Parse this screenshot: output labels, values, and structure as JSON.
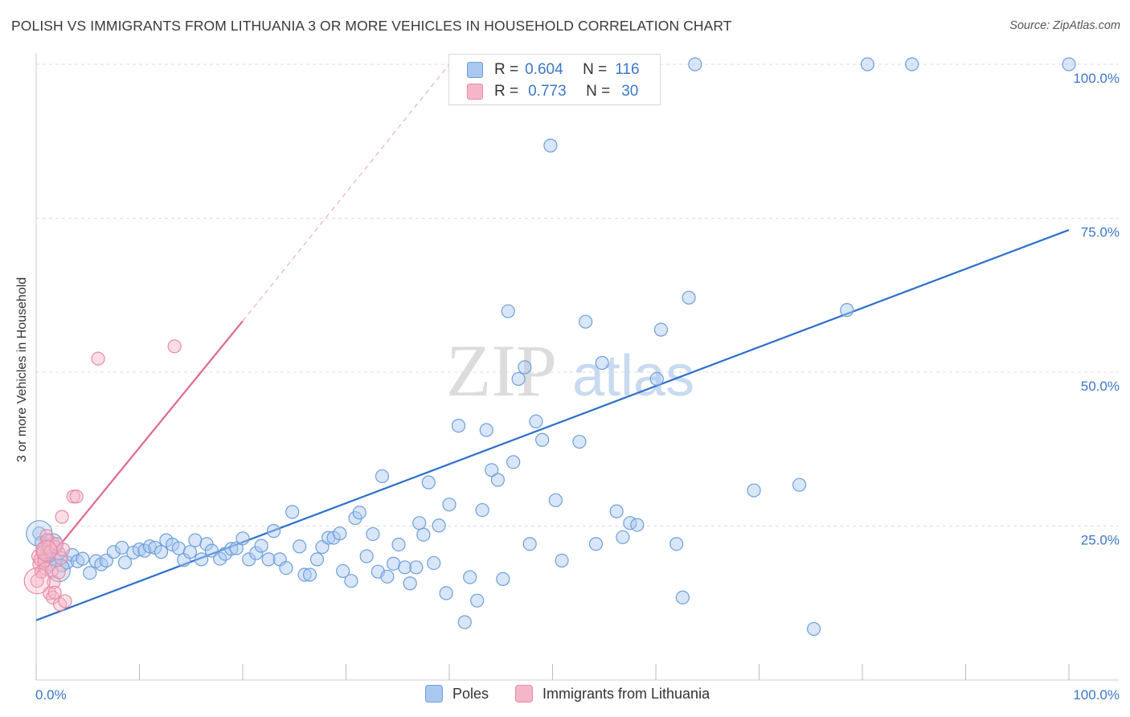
{
  "header": {
    "title": "POLISH VS IMMIGRANTS FROM LITHUANIA 3 OR MORE VEHICLES IN HOUSEHOLD CORRELATION CHART",
    "source": "Source: ZipAtlas.com"
  },
  "watermark": {
    "zip": "ZIP",
    "atlas": "atlas"
  },
  "legend": {
    "rows": [
      {
        "r_label": "R =",
        "r_value": "0.604",
        "n_label": "N =",
        "n_value": "116"
      },
      {
        "r_label": "R =",
        "r_value": "0.773",
        "n_label": "N =",
        "n_value": "30"
      }
    ]
  },
  "bottom_legend": {
    "series1": "Poles",
    "series2": "Immigrants from Lithuania"
  },
  "colors": {
    "blue_fill": "#a9c8ef",
    "blue_stroke": "#6d9fdc",
    "blue_line": "#2e6fcc",
    "pink_fill": "#f5b6c8",
    "pink_stroke": "#e88aa6",
    "pink_line": "#e06890",
    "axis_label": "#3a78c8",
    "grid": "#dddddd"
  },
  "chart_data": {
    "type": "scatter",
    "title": "POLISH VS IMMIGRANTS FROM LITHUANIA 3 OR MORE VEHICLES IN HOUSEHOLD CORRELATION CHART",
    "xlabel": "",
    "ylabel": "3 or more Vehicles in Household",
    "xlim": [
      0,
      100
    ],
    "ylim": [
      0,
      100
    ],
    "x_tick_labels": [
      "0.0%",
      "100.0%"
    ],
    "y_tick_labels": [
      "25.0%",
      "50.0%",
      "75.0%",
      "100.0%"
    ],
    "y_ticks": [
      25,
      50,
      75,
      100
    ],
    "legend_position": "top-center",
    "series": [
      {
        "name": "Poles",
        "r": 0.604,
        "n": 116,
        "trendline": {
          "x": [
            0,
            100
          ],
          "y": [
            9.7,
            73.1
          ]
        },
        "points": [
          [
            0.3,
            23.8
          ],
          [
            0.5,
            22.3
          ],
          [
            0.7,
            21.4
          ],
          [
            1.0,
            20.2
          ],
          [
            1.3,
            18.8
          ],
          [
            1.6,
            22.2
          ],
          [
            1.9,
            19.4
          ],
          [
            2.2,
            20.6
          ],
          [
            2.5,
            18.6
          ],
          [
            3.0,
            19.1
          ],
          [
            3.5,
            20.3
          ],
          [
            4.0,
            19.3
          ],
          [
            4.5,
            19.7
          ],
          [
            5.2,
            17.4
          ],
          [
            5.8,
            19.3
          ],
          [
            6.3,
            18.8
          ],
          [
            6.8,
            19.4
          ],
          [
            7.5,
            20.8
          ],
          [
            8.3,
            21.5
          ],
          [
            8.6,
            19.1
          ],
          [
            9.4,
            20.7
          ],
          [
            10.0,
            21.2
          ],
          [
            10.5,
            21.0
          ],
          [
            11.0,
            21.7
          ],
          [
            11.5,
            21.5
          ],
          [
            12.1,
            20.8
          ],
          [
            12.6,
            22.7
          ],
          [
            13.2,
            22.0
          ],
          [
            13.8,
            21.4
          ],
          [
            14.3,
            19.5
          ],
          [
            14.9,
            20.8
          ],
          [
            15.4,
            22.7
          ],
          [
            16.0,
            19.6
          ],
          [
            16.5,
            22.1
          ],
          [
            17.0,
            21.0
          ],
          [
            17.8,
            19.7
          ],
          [
            18.3,
            20.5
          ],
          [
            18.9,
            21.3
          ],
          [
            19.4,
            21.4
          ],
          [
            20.0,
            23.0
          ],
          [
            20.6,
            19.6
          ],
          [
            21.3,
            20.6
          ],
          [
            21.8,
            21.8
          ],
          [
            22.5,
            19.6
          ],
          [
            23.0,
            24.2
          ],
          [
            23.6,
            19.6
          ],
          [
            24.2,
            18.2
          ],
          [
            24.8,
            27.3
          ],
          [
            25.5,
            21.7
          ],
          [
            26.0,
            17.1
          ],
          [
            26.5,
            17.1
          ],
          [
            27.2,
            19.6
          ],
          [
            27.7,
            21.6
          ],
          [
            28.3,
            23.1
          ],
          [
            28.8,
            23.1
          ],
          [
            29.4,
            23.8
          ],
          [
            29.7,
            17.7
          ],
          [
            30.5,
            16.1
          ],
          [
            30.9,
            26.3
          ],
          [
            31.3,
            27.2
          ],
          [
            32.0,
            20.1
          ],
          [
            32.6,
            23.7
          ],
          [
            33.1,
            17.6
          ],
          [
            33.5,
            33.1
          ],
          [
            34.0,
            16.8
          ],
          [
            34.6,
            18.9
          ],
          [
            35.1,
            22.0
          ],
          [
            35.7,
            18.3
          ],
          [
            36.2,
            15.7
          ],
          [
            36.8,
            18.3
          ],
          [
            37.1,
            25.5
          ],
          [
            37.5,
            23.6
          ],
          [
            38.0,
            32.1
          ],
          [
            38.5,
            19.0
          ],
          [
            39.0,
            25.1
          ],
          [
            39.7,
            14.1
          ],
          [
            40.0,
            28.5
          ],
          [
            40.9,
            41.3
          ],
          [
            41.5,
            9.4
          ],
          [
            42.0,
            16.7
          ],
          [
            42.7,
            12.9
          ],
          [
            43.2,
            27.6
          ],
          [
            43.6,
            40.6
          ],
          [
            44.1,
            34.1
          ],
          [
            44.7,
            32.5
          ],
          [
            45.2,
            16.4
          ],
          [
            45.7,
            59.9
          ],
          [
            46.2,
            35.4
          ],
          [
            46.7,
            48.9
          ],
          [
            47.3,
            50.8
          ],
          [
            47.8,
            22.1
          ],
          [
            48.4,
            42.0
          ],
          [
            49.0,
            39.0
          ],
          [
            49.5,
            100
          ],
          [
            49.8,
            86.8
          ],
          [
            50.3,
            29.2
          ],
          [
            50.9,
            19.4
          ],
          [
            51.5,
            100
          ],
          [
            52.6,
            38.7
          ],
          [
            53.2,
            58.2
          ],
          [
            54.2,
            22.1
          ],
          [
            54.8,
            51.5
          ],
          [
            55.8,
            100
          ],
          [
            56.2,
            27.4
          ],
          [
            56.8,
            23.2
          ],
          [
            57.5,
            25.5
          ],
          [
            58.2,
            25.2
          ],
          [
            60.1,
            48.9
          ],
          [
            60.5,
            56.9
          ],
          [
            62.0,
            22.1
          ],
          [
            62.6,
            13.4
          ],
          [
            63.2,
            62.1
          ],
          [
            63.8,
            100
          ],
          [
            69.5,
            30.8
          ],
          [
            73.9,
            31.7
          ],
          [
            75.3,
            8.3
          ],
          [
            78.5,
            60.1
          ],
          [
            80.5,
            100
          ],
          [
            84.8,
            100
          ],
          [
            100,
            100
          ]
        ]
      },
      {
        "name": "Immigrants from Lithuania",
        "r": 0.773,
        "n": 30,
        "trendline_solid": {
          "x": [
            0,
            20
          ],
          "y": [
            17.2,
            58.3
          ]
        },
        "trendline_dashed": {
          "x": [
            20,
            40
          ],
          "y": [
            58.3,
            100
          ]
        },
        "points": [
          [
            0.1,
            16.1
          ],
          [
            0.2,
            20.1
          ],
          [
            0.3,
            18.8
          ],
          [
            0.4,
            19.6
          ],
          [
            0.5,
            17.6
          ],
          [
            0.6,
            21.2
          ],
          [
            0.7,
            20.8
          ],
          [
            0.8,
            19.4
          ],
          [
            0.9,
            18.1
          ],
          [
            1.0,
            23.4
          ],
          [
            1.1,
            22.7
          ],
          [
            1.2,
            21.6
          ],
          [
            1.3,
            14.1
          ],
          [
            1.4,
            20.9
          ],
          [
            1.5,
            17.7
          ],
          [
            1.6,
            13.4
          ],
          [
            1.7,
            15.9
          ],
          [
            1.8,
            14.2
          ],
          [
            1.9,
            21.6
          ],
          [
            2.0,
            22.1
          ],
          [
            2.2,
            17.5
          ],
          [
            2.3,
            12.3
          ],
          [
            2.4,
            19.8
          ],
          [
            2.5,
            26.5
          ],
          [
            2.6,
            21.2
          ],
          [
            2.8,
            12.8
          ],
          [
            3.6,
            29.8
          ],
          [
            3.9,
            29.8
          ],
          [
            6.0,
            52.2
          ],
          [
            13.4,
            54.2
          ]
        ]
      }
    ],
    "extra_points_note": ""
  }
}
